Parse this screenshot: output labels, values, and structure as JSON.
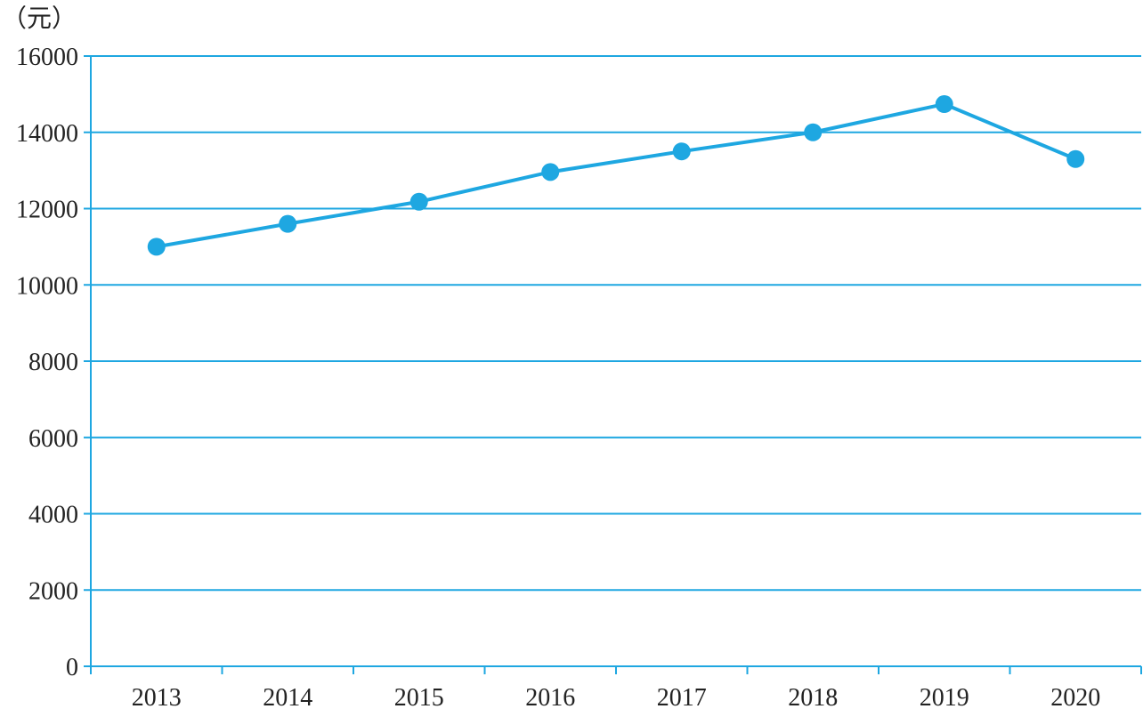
{
  "chart_data": {
    "type": "line",
    "title": "",
    "xlabel": "",
    "ylabel": "（元）",
    "x": [
      "2013",
      "2014",
      "2015",
      "2016",
      "2017",
      "2018",
      "2019",
      "2020"
    ],
    "series": [
      {
        "values": [
          11000,
          11600,
          12180,
          12960,
          13500,
          14000,
          14740,
          13300
        ]
      }
    ],
    "ylim": [
      0,
      16000
    ],
    "yticks": [
      "0",
      "2000",
      "4000",
      "6000",
      "8000",
      "10000",
      "12000",
      "14000",
      "16000"
    ],
    "grid": "horizontal",
    "legend": "none",
    "colors": {
      "series": "#1ea7e1",
      "grid": "#1ea7e1",
      "axis": "#1ea7e1"
    }
  }
}
